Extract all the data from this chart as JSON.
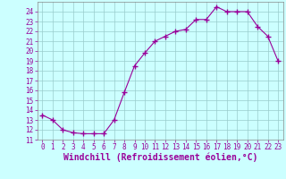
{
  "x": [
    0,
    1,
    2,
    3,
    4,
    5,
    6,
    7,
    8,
    9,
    10,
    11,
    12,
    13,
    14,
    15,
    16,
    17,
    18,
    19,
    20,
    21,
    22,
    23
  ],
  "y": [
    13.5,
    13.0,
    12.0,
    11.7,
    11.6,
    11.6,
    11.6,
    13.0,
    15.8,
    18.5,
    19.8,
    21.0,
    21.5,
    22.0,
    22.2,
    23.2,
    23.2,
    24.5,
    24.0,
    24.0,
    24.0,
    22.5,
    21.5,
    19.0
  ],
  "line_color": "#990099",
  "marker": "+",
  "marker_size": 4,
  "bg_color": "#ccffff",
  "grid_color": "#99cccc",
  "xlabel": "Windchill (Refroidissement éolien,°C)",
  "xlabel_color": "#990099",
  "xlim": [
    -0.5,
    23.5
  ],
  "ylim": [
    11,
    25
  ],
  "yticks": [
    11,
    12,
    13,
    14,
    15,
    16,
    17,
    18,
    19,
    20,
    21,
    22,
    23,
    24
  ],
  "xticks": [
    0,
    1,
    2,
    3,
    4,
    5,
    6,
    7,
    8,
    9,
    10,
    11,
    12,
    13,
    14,
    15,
    16,
    17,
    18,
    19,
    20,
    21,
    22,
    23
  ],
  "tick_color": "#990099",
  "tick_fontsize": 5.5,
  "xlabel_fontsize": 7.0,
  "spine_color": "#888888"
}
